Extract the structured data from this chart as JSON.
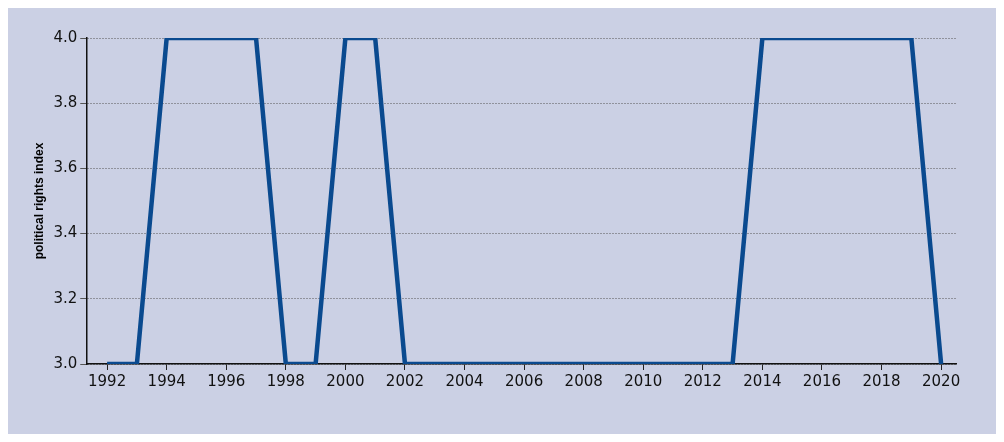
{
  "chart_data": {
    "type": "line",
    "ylabel": "political rights index",
    "x": [
      1992,
      1993,
      1994,
      1995,
      1996,
      1997,
      1998,
      1999,
      2000,
      2001,
      2002,
      2003,
      2004,
      2005,
      2006,
      2007,
      2008,
      2009,
      2010,
      2011,
      2012,
      2013,
      2014,
      2015,
      2016,
      2017,
      2018,
      2019,
      2020
    ],
    "series": [
      {
        "color": "#0a4a8f",
        "values": [
          3,
          3,
          4,
          4,
          4,
          4,
          3,
          3,
          4,
          4,
          3,
          3,
          3,
          3,
          3,
          3,
          3,
          3,
          3,
          3,
          3,
          3,
          4,
          4,
          4,
          4,
          4,
          4,
          3
        ]
      }
    ],
    "xlim": [
      1991.3,
      2020.5
    ],
    "xticks": [
      1992,
      1994,
      1996,
      1998,
      2000,
      2002,
      2004,
      2006,
      2008,
      2010,
      2012,
      2014,
      2016,
      2018,
      2020
    ],
    "ylim": [
      3.0,
      4.0
    ],
    "yticks": [
      {
        "value": 3.0,
        "label": "3.0"
      },
      {
        "value": 3.2,
        "label": "3.2"
      },
      {
        "value": 3.4,
        "label": "3.4"
      },
      {
        "value": 3.6,
        "label": "3.6"
      },
      {
        "value": 3.8,
        "label": "3.8"
      },
      {
        "value": 4.0,
        "label": "4.0"
      }
    ],
    "grid": "y",
    "legend": false,
    "marker": "none",
    "line_style": "solid"
  }
}
